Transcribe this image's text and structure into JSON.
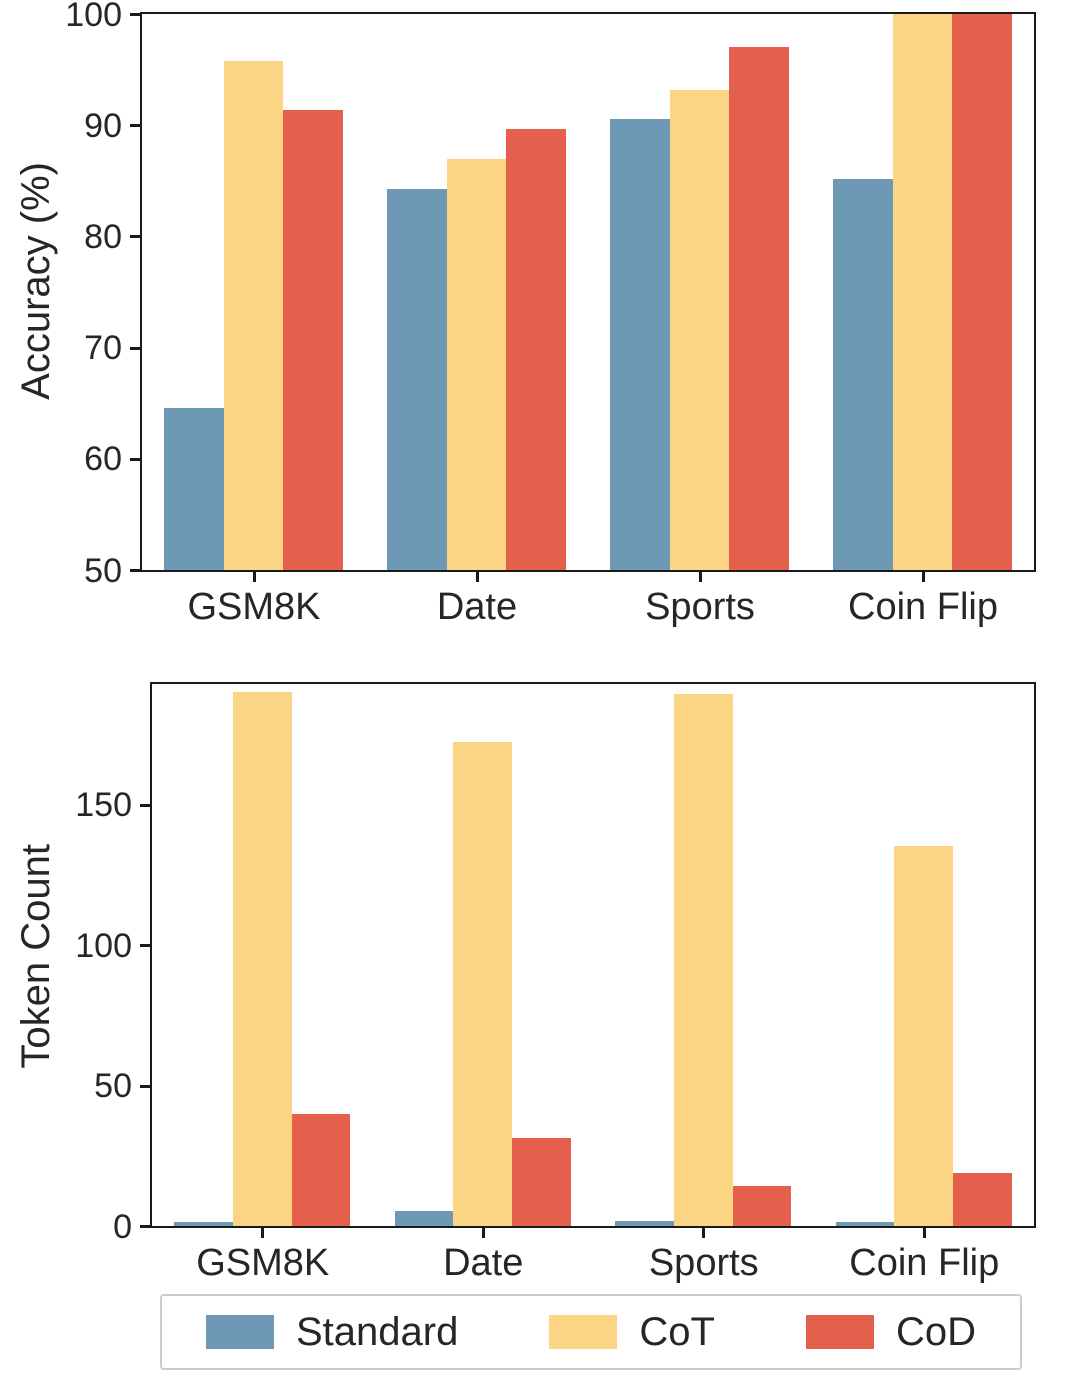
{
  "colors": {
    "standard": "#6e99b5",
    "cot": "#fcd584",
    "cod": "#e4604c"
  },
  "chart_data": [
    {
      "type": "bar",
      "title": "",
      "ylabel": "Accuracy (%)",
      "xlabel": "",
      "categories": [
        "GSM8K",
        "Date",
        "Sports",
        "Coin Flip"
      ],
      "ylim": [
        50,
        100
      ],
      "yticks": [
        50,
        60,
        70,
        80,
        90,
        100
      ],
      "grid": false,
      "series": [
        {
          "name": "Standard",
          "color": "#6e99b5",
          "values": [
            64.6,
            84.3,
            90.6,
            85.2
          ]
        },
        {
          "name": "CoT",
          "color": "#fcd584",
          "values": [
            95.8,
            87.0,
            93.2,
            100.0
          ]
        },
        {
          "name": "CoD",
          "color": "#e4604c",
          "values": [
            91.4,
            89.7,
            97.0,
            100.0
          ]
        }
      ]
    },
    {
      "type": "bar",
      "title": "",
      "ylabel": "Token Count",
      "xlabel": "",
      "categories": [
        "GSM8K",
        "Date",
        "Sports",
        "Coin Flip"
      ],
      "ylim": [
        0,
        193
      ],
      "yticks": [
        0,
        50,
        100,
        150
      ],
      "grid": false,
      "series": [
        {
          "name": "Standard",
          "color": "#6e99b5",
          "values": [
            1.5,
            5.2,
            1.8,
            1.5
          ]
        },
        {
          "name": "CoT",
          "color": "#fcd584",
          "values": [
            190.0,
            172.5,
            189.4,
            135.3
          ]
        },
        {
          "name": "CoD",
          "color": "#e4604c",
          "values": [
            39.8,
            31.3,
            14.3,
            18.9
          ]
        }
      ]
    }
  ],
  "legend": {
    "entries": [
      {
        "label": "Standard",
        "color": "#6e99b5"
      },
      {
        "label": "CoT",
        "color": "#fcd584"
      },
      {
        "label": "CoD",
        "color": "#e4604c"
      }
    ]
  }
}
